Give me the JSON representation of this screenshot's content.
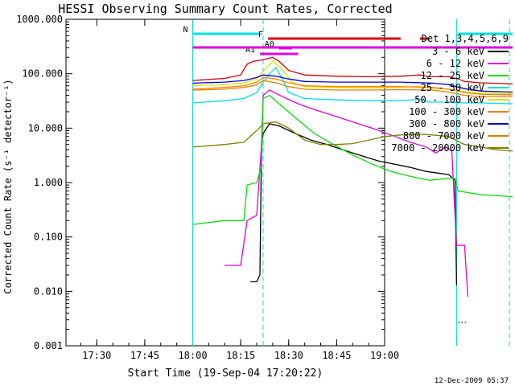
{
  "chart_data": {
    "type": "line",
    "title": "HESSI Observing Summary Count Rates, Corrected",
    "ylabel": "Corrected Count Rate (s⁻¹ detector⁻¹)",
    "xlabel": "Start Time (19-Sep-04 17:20:22)",
    "timestamp": "12-Dec-2009 05:37",
    "yscale": "log",
    "ylim": [
      0.001,
      1000
    ],
    "xlim": [
      "17:20:22",
      "19:00:00"
    ],
    "ytick_labels": [
      "0.001",
      "0.010",
      "0.100",
      "1.000",
      "10.000",
      "100.000",
      "1000.000"
    ],
    "xtick_labels": [
      "17:30",
      "17:45",
      "18:00",
      "18:15",
      "18:30",
      "18:45",
      "19:00"
    ],
    "xtick_minutes": [
      30,
      45,
      60,
      75,
      90,
      105,
      120
    ],
    "legend_title": "Det 1,3,4,5,6,9",
    "legend_position": "right",
    "series": [
      {
        "name": "3 - 6 keV",
        "color": "#000000",
        "points": [
          [
            78,
            0.015
          ],
          [
            80,
            0.015
          ],
          [
            81,
            0.02
          ],
          [
            81.5,
            5
          ],
          [
            82,
            8
          ],
          [
            84,
            12
          ],
          [
            87,
            11
          ],
          [
            92,
            8
          ],
          [
            97,
            6
          ],
          [
            102,
            5
          ],
          [
            110,
            3.5
          ],
          [
            118,
            2.5
          ],
          [
            128,
            1.9
          ],
          [
            133,
            1.6
          ],
          [
            140,
            1.4
          ],
          [
            142,
            1.1
          ],
          [
            142.5,
            0.013
          ]
        ]
      },
      {
        "name": "6 - 12 keV",
        "color": "#e000e0",
        "points": [
          [
            70,
            0.03
          ],
          [
            75,
            0.03
          ],
          [
            77,
            0.2
          ],
          [
            80,
            0.25
          ],
          [
            81.5,
            5
          ],
          [
            82,
            40
          ],
          [
            84,
            50
          ],
          [
            88,
            38
          ],
          [
            93,
            28
          ],
          [
            98,
            22
          ],
          [
            104,
            17
          ],
          [
            110,
            13
          ],
          [
            116,
            10
          ],
          [
            122,
            7.5
          ],
          [
            128,
            5.5
          ],
          [
            133,
            4.5
          ],
          [
            136,
            3.5
          ],
          [
            139,
            4.5
          ],
          [
            141,
            3.8
          ],
          [
            142.5,
            0.07
          ],
          [
            145,
            0.07
          ],
          [
            146,
            0.008
          ]
        ]
      },
      {
        "name": "12 - 25 keV",
        "color": "#00e000",
        "points": [
          [
            60,
            0.17
          ],
          [
            70,
            0.2
          ],
          [
            76,
            0.2
          ],
          [
            77,
            0.9
          ],
          [
            80,
            1.0
          ],
          [
            81.5,
            2
          ],
          [
            82,
            35
          ],
          [
            84,
            40
          ],
          [
            88,
            25
          ],
          [
            93,
            14
          ],
          [
            98,
            8
          ],
          [
            104,
            5
          ],
          [
            110,
            3.2
          ],
          [
            116,
            2.2
          ],
          [
            122,
            1.6
          ],
          [
            128,
            1.3
          ],
          [
            134,
            1.1
          ],
          [
            140,
            1.2
          ],
          [
            142,
            1.2
          ],
          [
            143,
            0.7
          ],
          [
            150,
            0.6
          ],
          [
            160,
            0.55
          ]
        ]
      },
      {
        "name": "25 - 50 keV",
        "color": "#00e0e0",
        "points": [
          [
            60,
            29
          ],
          [
            70,
            32
          ],
          [
            76,
            35
          ],
          [
            80,
            45
          ],
          [
            82,
            70
          ],
          [
            84,
            100
          ],
          [
            86,
            130
          ],
          [
            88,
            80
          ],
          [
            90,
            45
          ],
          [
            95,
            35
          ],
          [
            105,
            33
          ],
          [
            115,
            32
          ],
          [
            125,
            32
          ],
          [
            131,
            34
          ],
          [
            134,
            30
          ],
          [
            140,
            30
          ],
          [
            145,
            29
          ],
          [
            150,
            29
          ],
          [
            160,
            28
          ]
        ]
      },
      {
        "name": "50 - 100 keV",
        "color": "#e0e000",
        "points": [
          [
            60,
            60
          ],
          [
            70,
            63
          ],
          [
            76,
            68
          ],
          [
            80,
            80
          ],
          [
            82,
            110
          ],
          [
            85,
            170
          ],
          [
            88,
            120
          ],
          [
            91,
            70
          ],
          [
            95,
            58
          ],
          [
            105,
            56
          ],
          [
            115,
            55
          ],
          [
            125,
            57
          ],
          [
            131,
            58
          ],
          [
            135,
            54
          ],
          [
            140,
            52
          ],
          [
            145,
            47
          ],
          [
            150,
            44
          ],
          [
            160,
            43
          ]
        ]
      },
      {
        "name": "100 - 300 keV",
        "color": "#ff8000",
        "points": [
          [
            60,
            52
          ],
          [
            70,
            56
          ],
          [
            76,
            60
          ],
          [
            80,
            70
          ],
          [
            82,
            85
          ],
          [
            86,
            80
          ],
          [
            90,
            68
          ],
          [
            95,
            60
          ],
          [
            105,
            58
          ],
          [
            115,
            58
          ],
          [
            125,
            58
          ],
          [
            135,
            56
          ],
          [
            140,
            52
          ],
          [
            145,
            45
          ],
          [
            150,
            42
          ],
          [
            160,
            41
          ]
        ]
      },
      {
        "name": "300 - 800 keV",
        "color": "#0000e0",
        "points": [
          [
            60,
            67
          ],
          [
            70,
            70
          ],
          [
            76,
            75
          ],
          [
            80,
            85
          ],
          [
            82,
            95
          ],
          [
            86,
            90
          ],
          [
            90,
            80
          ],
          [
            95,
            72
          ],
          [
            105,
            70
          ],
          [
            115,
            70
          ],
          [
            125,
            70
          ],
          [
            135,
            67
          ],
          [
            140,
            63
          ],
          [
            145,
            53
          ],
          [
            150,
            48
          ],
          [
            160,
            46
          ]
        ]
      },
      {
        "name": "800 - 7000 keV",
        "color": "#e08000",
        "points": [
          [
            60,
            50
          ],
          [
            70,
            52
          ],
          [
            76,
            56
          ],
          [
            80,
            62
          ],
          [
            82,
            75
          ],
          [
            86,
            68
          ],
          [
            90,
            58
          ],
          [
            95,
            52
          ],
          [
            105,
            50
          ],
          [
            115,
            50
          ],
          [
            125,
            51
          ],
          [
            135,
            50
          ],
          [
            140,
            46
          ],
          [
            145,
            40
          ],
          [
            150,
            38
          ],
          [
            160,
            38
          ]
        ]
      },
      {
        "name": "7000 - 20000 keV",
        "color": "#808000",
        "points": [
          [
            60,
            4.5
          ],
          [
            70,
            5
          ],
          [
            76,
            5.5
          ],
          [
            80,
            9
          ],
          [
            82,
            12
          ],
          [
            86,
            13
          ],
          [
            90,
            10
          ],
          [
            95,
            6
          ],
          [
            100,
            5
          ],
          [
            105,
            5
          ],
          [
            110,
            5.2
          ],
          [
            115,
            6
          ],
          [
            120,
            7
          ],
          [
            125,
            7.5
          ],
          [
            130,
            7.8
          ],
          [
            135,
            7.5
          ],
          [
            140,
            7
          ],
          [
            145,
            5
          ],
          [
            150,
            4.5
          ],
          [
            155,
            4
          ],
          [
            160,
            3.8
          ]
        ]
      },
      {
        "name": "",
        "color": "#d00000",
        "points": [
          [
            60,
            75
          ],
          [
            70,
            82
          ],
          [
            75,
            95
          ],
          [
            77,
            150
          ],
          [
            79,
            170
          ],
          [
            82,
            180
          ],
          [
            85,
            200
          ],
          [
            87,
            170
          ],
          [
            90,
            115
          ],
          [
            95,
            95
          ],
          [
            105,
            90
          ],
          [
            115,
            88
          ],
          [
            125,
            90
          ],
          [
            131,
            95
          ],
          [
            134,
            88
          ],
          [
            140,
            88
          ],
          [
            143,
            80
          ],
          [
            145,
            72
          ],
          [
            150,
            68
          ],
          [
            160,
            65
          ]
        ]
      }
    ],
    "flag_bars": [
      {
        "label": "N",
        "color": "#00e0e0",
        "y_label": "N",
        "segments": [
          [
            60,
            81
          ],
          [
            143,
            160
          ]
        ]
      },
      {
        "label": "F",
        "color": "#e00000",
        "segments": [
          [
            83.5,
            125
          ],
          [
            131,
            134
          ]
        ]
      },
      {
        "label": "A0",
        "color": "#e000e0",
        "segments": [
          [
            87,
            91
          ]
        ]
      },
      {
        "label": "A1",
        "color": "#e000e0",
        "segments": [
          [
            81,
            93
          ]
        ]
      },
      {
        "label": "",
        "color": "#e000e0",
        "segments": [
          [
            60,
            160
          ]
        ]
      }
    ],
    "vertical_markers": [
      {
        "x": 82,
        "style": "dashed",
        "color": "#00e0e0"
      },
      {
        "x": 142.5,
        "style": "solid",
        "color": "#00e0e0"
      },
      {
        "x": 159,
        "style": "dashed",
        "color": "#00e0e0"
      },
      {
        "x": 60,
        "style": "solid",
        "color": "#00e0e0"
      }
    ],
    "extra_markers": [
      {
        "x_range": [
          143,
          146
        ],
        "y": 0.0027,
        "color": "#000000"
      }
    ]
  }
}
